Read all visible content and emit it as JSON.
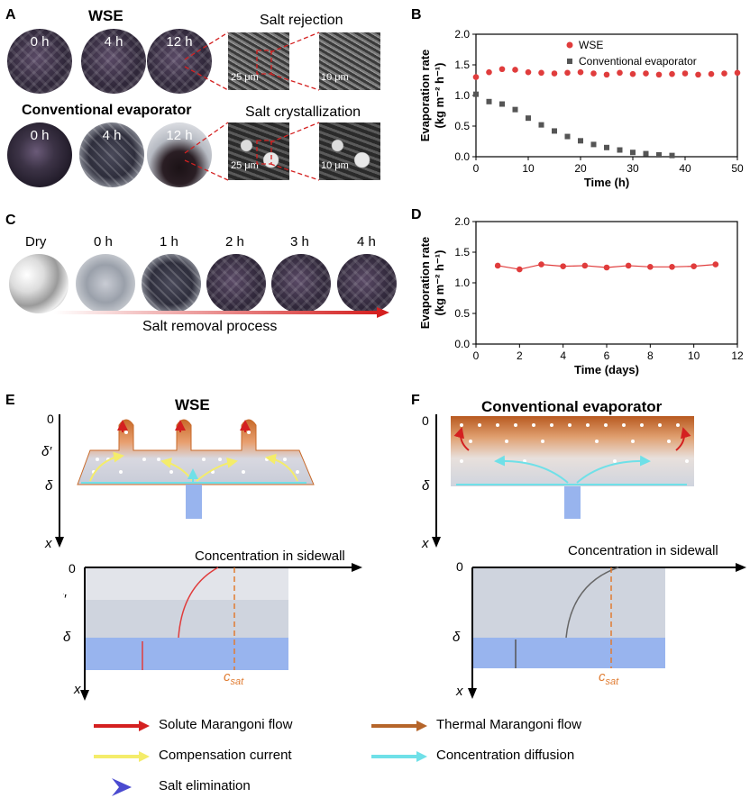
{
  "panels": {
    "A": {
      "label": "A",
      "wse_title": "WSE",
      "conv_title": "Conventional evaporator",
      "time_labels": [
        "0 h",
        "4 h",
        "12 h"
      ],
      "salt_rejection": "Salt rejection",
      "salt_crystallization": "Salt crystallization",
      "scale_25": "25 μm",
      "scale_10": "10 μm"
    },
    "B": {
      "label": "B"
    },
    "C": {
      "label": "C",
      "time_labels": [
        "Dry",
        "0 h",
        "1 h",
        "2 h",
        "3 h",
        "4 h"
      ],
      "arrow_label": "Salt removal process"
    },
    "D": {
      "label": "D"
    },
    "E": {
      "label": "E",
      "title": "WSE",
      "axis_zero": "0",
      "delta_prime": "δ′",
      "delta": "δ",
      "x": "x",
      "conc_title": "Concentration in sidewall",
      "csat": "c",
      "csat_sub": "sat"
    },
    "F": {
      "label": "F",
      "title": "Conventional evaporator",
      "axis_zero": "0",
      "delta": "δ",
      "x": "x",
      "conc_title": "Concentration in sidewall",
      "csat": "c",
      "csat_sub": "sat"
    }
  },
  "legend": {
    "solute": "Solute Marangoni flow",
    "thermal": "Thermal Marangoni flow",
    "compensation": "Compensation current",
    "diffusion": "Concentration diffusion",
    "elimination": "Salt elimination"
  },
  "colors": {
    "wse": "#e03c3c",
    "conventional": "#555555",
    "solute": "#d42020",
    "thermal": "#b5652a",
    "compensation": "#f4ec6a",
    "diffusion": "#6fe0e8",
    "elimination": "#4a4ad0",
    "water": "#98b4ee"
  },
  "chart_data": [
    {
      "id": "B",
      "type": "scatter",
      "xlabel": "Time (h)",
      "ylabel": "Evaporation rate",
      "yunit": "(kg m⁻² h⁻¹)",
      "xlim": [
        0,
        50
      ],
      "ylim": [
        0.0,
        2.0
      ],
      "xticks": [
        0,
        10,
        20,
        30,
        40,
        50
      ],
      "yticks": [
        "0.0",
        "0.5",
        "1.0",
        "1.5",
        "2.0"
      ],
      "legend_position": "top-right",
      "series": [
        {
          "name": "WSE",
          "marker": "circle",
          "x": [
            0,
            2.5,
            5,
            7.5,
            10,
            12.5,
            15,
            17.5,
            20,
            22.5,
            25,
            27.5,
            30,
            32.5,
            35,
            37.5,
            40,
            42.5,
            45,
            47.5,
            50
          ],
          "y": [
            1.3,
            1.38,
            1.43,
            1.42,
            1.38,
            1.37,
            1.36,
            1.37,
            1.38,
            1.36,
            1.34,
            1.37,
            1.35,
            1.36,
            1.34,
            1.35,
            1.36,
            1.34,
            1.35,
            1.36,
            1.37
          ]
        },
        {
          "name": "Conventional evaporator",
          "marker": "square",
          "x": [
            0,
            2.5,
            5,
            7.5,
            10,
            12.5,
            15,
            17.5,
            20,
            22.5,
            25,
            27.5,
            30,
            32.5,
            35,
            37.5
          ],
          "y": [
            1.02,
            0.9,
            0.86,
            0.77,
            0.63,
            0.52,
            0.42,
            0.33,
            0.26,
            0.2,
            0.15,
            0.11,
            0.07,
            0.05,
            0.03,
            0.02
          ]
        }
      ]
    },
    {
      "id": "D",
      "type": "line",
      "xlabel": "Time (days)",
      "ylabel": "Evaporation rate",
      "yunit": "(kg m⁻² h⁻¹)",
      "xlim": [
        0,
        12
      ],
      "ylim": [
        0.0,
        2.0
      ],
      "xticks": [
        0,
        2,
        4,
        6,
        8,
        10,
        12
      ],
      "yticks": [
        "0.0",
        "0.5",
        "1.0",
        "1.5",
        "2.0"
      ],
      "series": [
        {
          "marker": "circle",
          "x": [
            1,
            2,
            3,
            4,
            5,
            6,
            7,
            8,
            9,
            10,
            11
          ],
          "y": [
            1.28,
            1.22,
            1.3,
            1.27,
            1.28,
            1.25,
            1.28,
            1.26,
            1.26,
            1.27,
            1.3
          ]
        }
      ]
    }
  ]
}
